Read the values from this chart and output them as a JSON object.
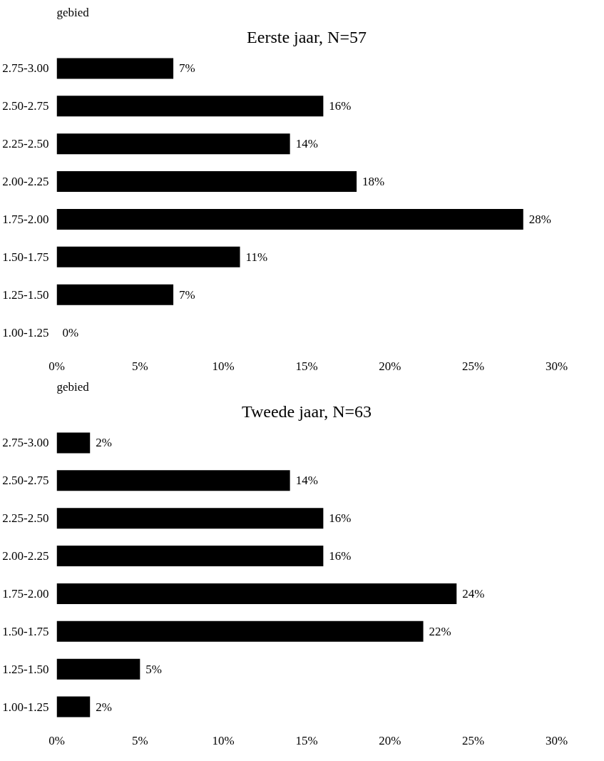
{
  "chart_data": [
    {
      "type": "bar",
      "orientation": "horizontal",
      "title": "Eerste jaar, N=57",
      "ylabel": "gebied",
      "categories": [
        "2.75-3.00",
        "2.50-2.75",
        "2.25-2.50",
        "2.00-2.25",
        "1.75-2.00",
        "1.50-1.75",
        "1.25-1.50",
        "1.00-1.25"
      ],
      "values": [
        7,
        16,
        14,
        18,
        28,
        11,
        7,
        0
      ],
      "value_labels": [
        "7%",
        "16%",
        "14%",
        "18%",
        "28%",
        "11%",
        "7%",
        "0%"
      ],
      "color": "#000000",
      "xlim": [
        0,
        30
      ],
      "xticks": [
        {
          "value": 0,
          "label": "0%"
        },
        {
          "value": 5,
          "label": "5%"
        },
        {
          "value": 10,
          "label": "10%"
        },
        {
          "value": 15,
          "label": "15%"
        },
        {
          "value": 20,
          "label": "20%"
        },
        {
          "value": 25,
          "label": "25%"
        },
        {
          "value": 30,
          "label": "30%"
        }
      ],
      "grid": false
    },
    {
      "type": "bar",
      "orientation": "horizontal",
      "title": "Tweede jaar, N=63",
      "ylabel": "gebied",
      "categories": [
        "2.75-3.00",
        "2.50-2.75",
        "2.25-2.50",
        "2.00-2.25",
        "1.75-2.00",
        "1.50-1.75",
        "1.25-1.50",
        "1.00-1.25"
      ],
      "values": [
        2,
        14,
        16,
        16,
        24,
        22,
        5,
        2
      ],
      "value_labels": [
        "2%",
        "14%",
        "16%",
        "16%",
        "24%",
        "22%",
        "5%",
        "2%"
      ],
      "color": "#000000",
      "xlim": [
        0,
        30
      ],
      "xticks": [
        {
          "value": 0,
          "label": "0%"
        },
        {
          "value": 5,
          "label": "5%"
        },
        {
          "value": 10,
          "label": "10%"
        },
        {
          "value": 15,
          "label": "15%"
        },
        {
          "value": 20,
          "label": "20%"
        },
        {
          "value": 25,
          "label": "25%"
        },
        {
          "value": 30,
          "label": "30%"
        }
      ],
      "grid": false
    }
  ]
}
